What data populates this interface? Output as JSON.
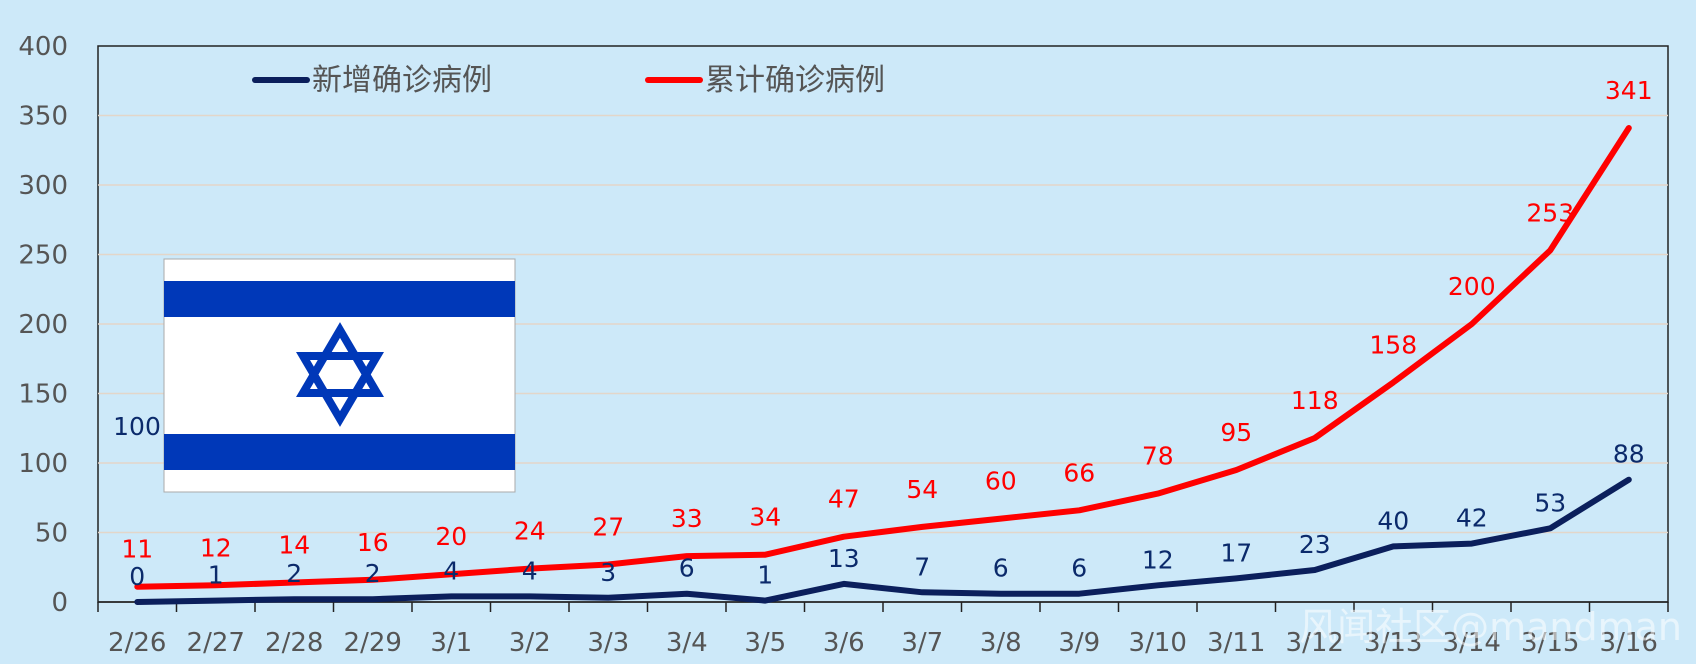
{
  "chart_data": {
    "type": "line",
    "categories": [
      "2/26",
      "2/27",
      "2/28",
      "2/29",
      "3/1",
      "3/2",
      "3/3",
      "3/4",
      "3/5",
      "3/6",
      "3/7",
      "3/8",
      "3/9",
      "3/10",
      "3/11",
      "3/12",
      "3/13",
      "3/14",
      "3/15",
      "3/16"
    ],
    "series": [
      {
        "name": "新增确诊病例",
        "color": "#0b1f5c",
        "values": [
          0,
          1,
          2,
          2,
          4,
          4,
          3,
          6,
          1,
          13,
          7,
          6,
          6,
          12,
          17,
          23,
          40,
          42,
          53,
          88
        ],
        "labels": [
          "0",
          "1",
          "2",
          "2",
          "4",
          "4",
          "3",
          "6",
          "1",
          "13",
          "7",
          "6",
          "6",
          "12",
          "17",
          "23",
          "40",
          "42",
          "53",
          "88"
        ]
      },
      {
        "name": "累计确诊病例",
        "color": "#ff0000",
        "values": [
          11,
          12,
          14,
          16,
          20,
          24,
          27,
          33,
          34,
          47,
          54,
          60,
          66,
          78,
          95,
          118,
          158,
          200,
          253,
          341
        ],
        "labels": [
          "11",
          "12",
          "14",
          "16",
          "20",
          "24",
          "27",
          "33",
          "34",
          "47",
          "54",
          "60",
          "66",
          "78",
          "95",
          "118",
          "158",
          "200",
          "253",
          "341"
        ]
      }
    ],
    "y_ticks": [
      "0",
      "50",
      "100",
      "150",
      "200",
      "250",
      "300",
      "350",
      "400"
    ],
    "ylim": [
      0,
      400
    ],
    "grid": true,
    "legend_position": "top-left",
    "stray_label": "100",
    "flag_icon": "israel-flag-icon",
    "flag_colors": {
      "blue": "#0038b8",
      "white": "#ffffff"
    },
    "watermark": "风闻社区@mandman"
  }
}
